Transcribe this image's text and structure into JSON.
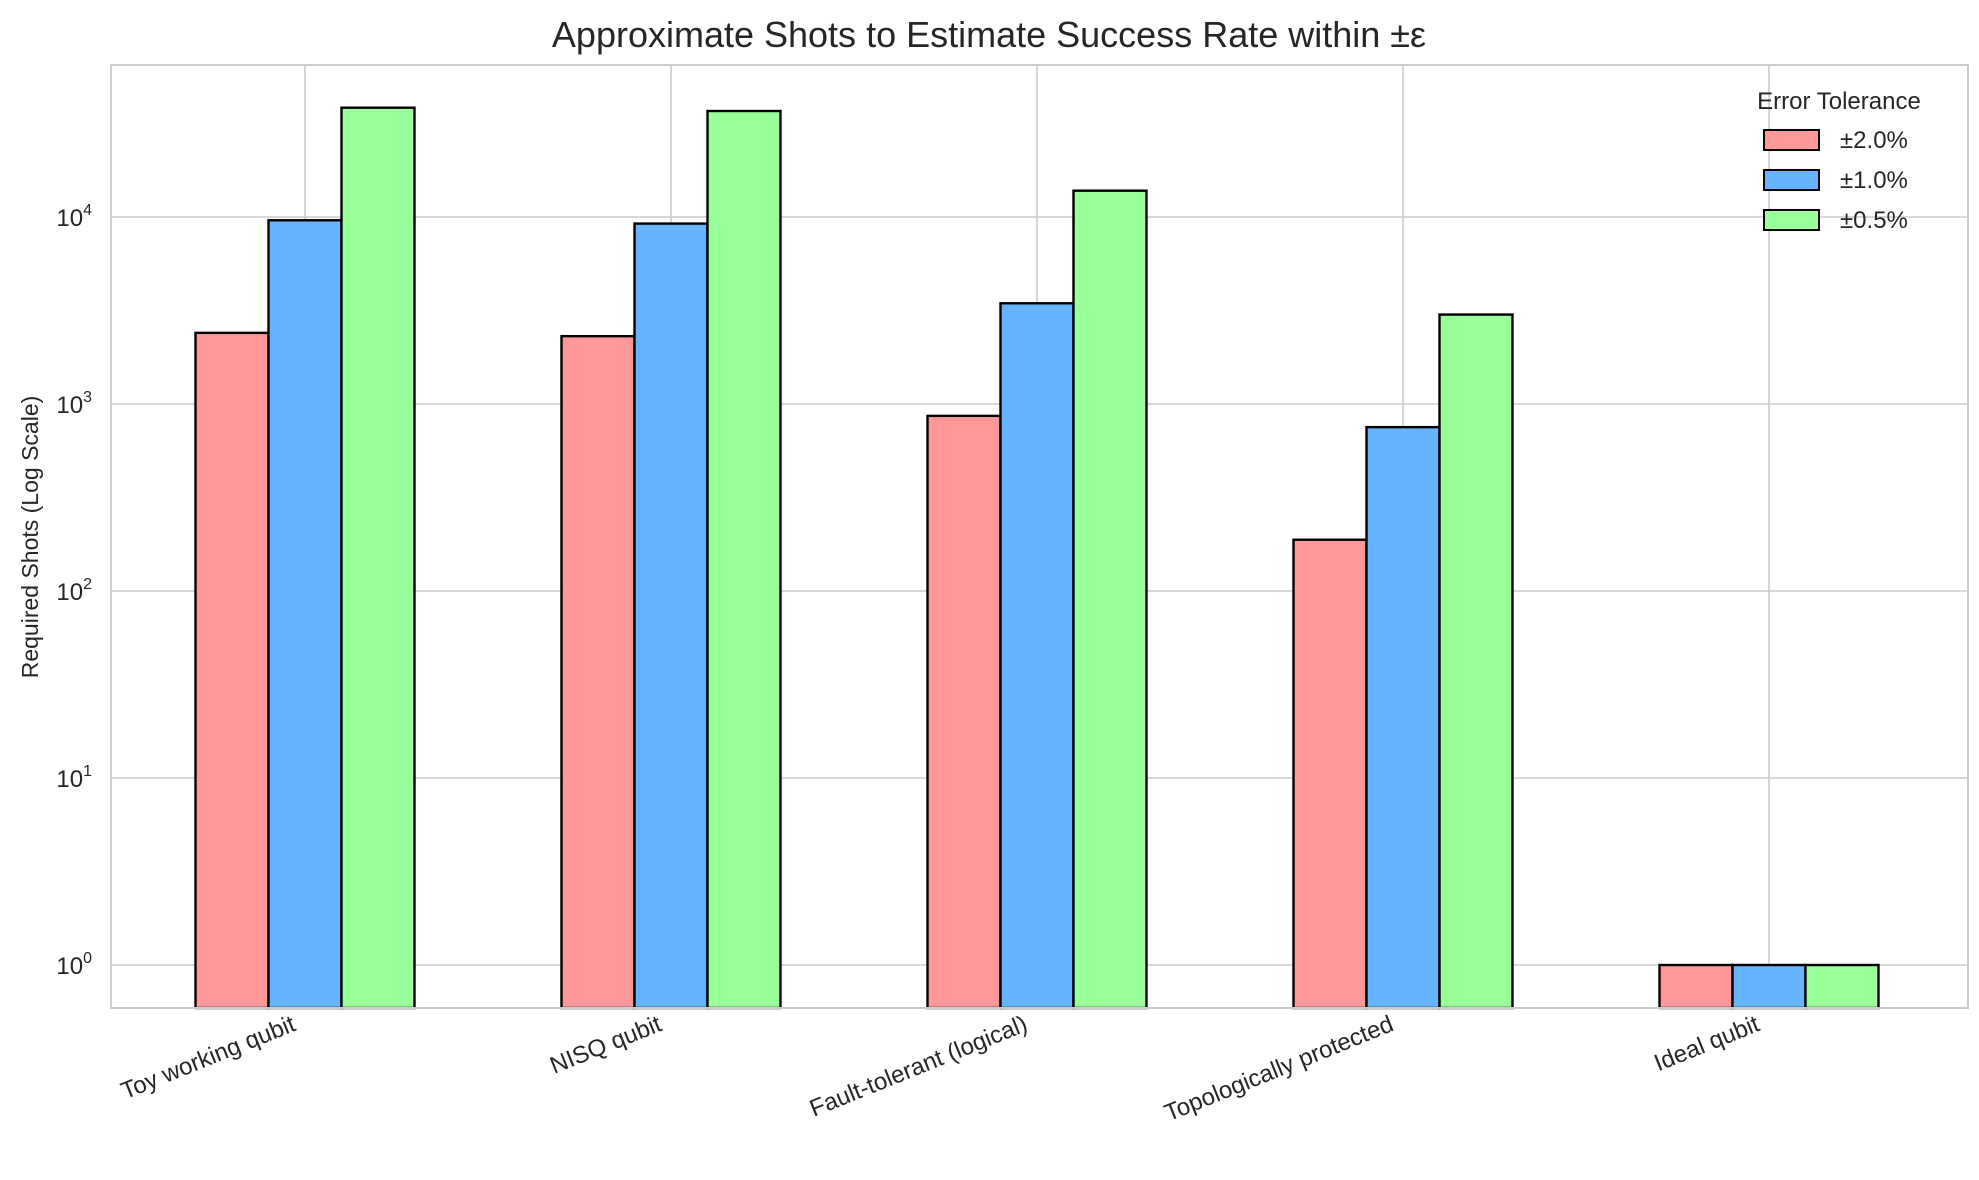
{
  "chart_data": {
    "type": "bar",
    "title": "Approximate Shots to Estimate Success Rate within ±ε",
    "xlabel": "",
    "ylabel": "Required Shots (Log Scale)",
    "yscale": "log",
    "ylim": [
      0.6,
      60000
    ],
    "yticks": [
      {
        "base": "10",
        "exp": "0",
        "value": 1
      },
      {
        "base": "10",
        "exp": "1",
        "value": 10
      },
      {
        "base": "10",
        "exp": "2",
        "value": 100
      },
      {
        "base": "10",
        "exp": "3",
        "value": 1000
      },
      {
        "base": "10",
        "exp": "4",
        "value": 10000
      }
    ],
    "grid": true,
    "categories": [
      "Toy working qubit",
      "NISQ qubit",
      "Fault-tolerant (logical)",
      "Topologically protected",
      "Ideal qubit"
    ],
    "legend": {
      "title": "Error Tolerance",
      "placement": "top-right"
    },
    "series": [
      {
        "name": "±2.0%",
        "color": "#ff9999",
        "values": [
          2401,
          2305,
          864,
          188,
          1
        ]
      },
      {
        "name": "±1.0%",
        "color": "#66b3ff",
        "values": [
          9604,
          9220,
          3457,
          752,
          1
        ]
      },
      {
        "name": "±0.5%",
        "color": "#99ff99",
        "values": [
          38416,
          36880,
          13828,
          3008,
          1
        ]
      }
    ]
  }
}
